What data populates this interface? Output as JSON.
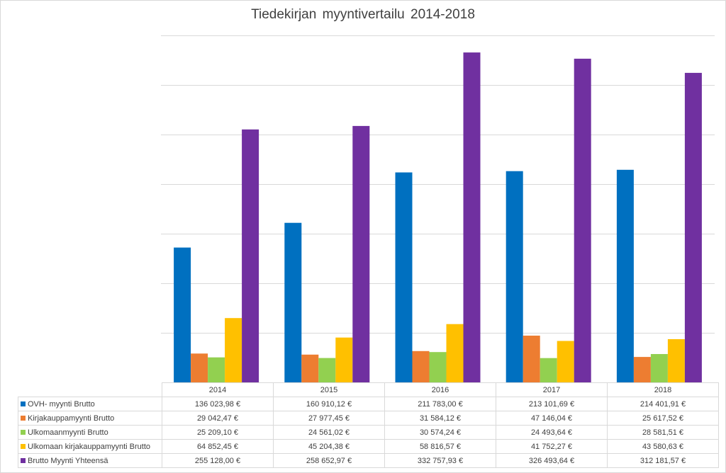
{
  "colors": {
    "ovh": "#0070C0",
    "kirjakauppa": "#ED7D31",
    "ulkomaan": "#92D050",
    "ulkomaan_kirjakauppa": "#FFC000",
    "brutto_yhteensa": "#7030A0",
    "grid": "#d9d9d9"
  },
  "chart_data": {
    "type": "bar",
    "title": "Tiedekirjan  myyntivertailu 2014-2018",
    "categories": [
      "2014",
      "2015",
      "2016",
      "2017",
      "2018"
    ],
    "ylim": [
      0,
      350000
    ],
    "grid": true,
    "y_tick_labels_visible": false,
    "legend": "data-table",
    "series": [
      {
        "name": "OVH- myynti Brutto",
        "values": [
          136023.98,
          160910.12,
          211783.0,
          213101.69,
          214401.91
        ],
        "labels": [
          "136 023,98 €",
          "160 910,12 €",
          "211 783,00 €",
          "213 101,69 €",
          "214 401,91 €"
        ]
      },
      {
        "name": "Kirjakauppamyynti Brutto",
        "values": [
          29042.47,
          27977.45,
          31584.12,
          47146.04,
          25617.52
        ],
        "labels": [
          "29 042,47 €",
          "27 977,45 €",
          "31 584,12 €",
          "47 146,04 €",
          "25 617,52 €"
        ]
      },
      {
        "name": "Ulkomaanmyynti Brutto",
        "values": [
          25209.1,
          24561.02,
          30574.24,
          24493.64,
          28581.51
        ],
        "labels": [
          "25 209,10 €",
          "24 561,02 €",
          "30 574,24 €",
          "24 493,64 €",
          "28 581,51 €"
        ]
      },
      {
        "name": "Ulkomaan kirjakauppamyynti Brutto",
        "values": [
          64852.45,
          45204.38,
          58816.57,
          41752.27,
          43580.63
        ],
        "labels": [
          "64 852,45 €",
          "45 204,38 €",
          "58 816,57 €",
          "41 752,27 €",
          "43 580,63 €"
        ]
      },
      {
        "name": "Brutto Myynti Yhteensä",
        "values": [
          255128.0,
          258652.97,
          332757.93,
          326493.64,
          312181.57
        ],
        "labels": [
          "255 128,00 €",
          "258 652,97 €",
          "332 757,93 €",
          "326 493,64 €",
          "312 181,57 €"
        ]
      }
    ]
  }
}
